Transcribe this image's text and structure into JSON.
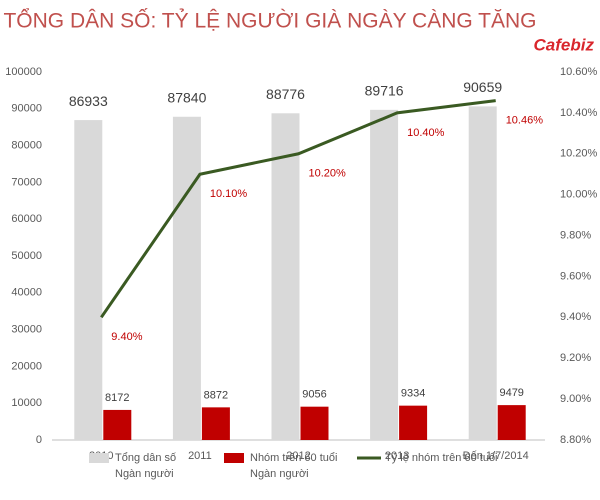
{
  "chart_data": {
    "type": "bar-line",
    "title": "TỔNG DÂN SỐ: TỶ LỆ NGƯỜI GIÀ NGÀY CÀNG TĂNG",
    "logo": "Cafebiz",
    "categories": [
      "2010",
      "2011",
      "2012",
      "2013",
      "Đến 1/7/2014"
    ],
    "series": [
      {
        "name": "Tổng dân số",
        "unit": "Ngàn người",
        "type": "bar",
        "color": "#d9d9d9",
        "values": [
          86933,
          87840,
          88776,
          89716,
          90659
        ]
      },
      {
        "name": "Nhóm trên 60 tuổi",
        "unit": "Ngàn người",
        "type": "bar",
        "color": "#c00000",
        "values": [
          8172,
          8872,
          9056,
          9334,
          9479
        ]
      },
      {
        "name": "Tỷ lệ nhóm trên 60 tuổi",
        "type": "line",
        "axis": "y2",
        "color": "#3a5a22",
        "values": [
          9.4,
          10.1,
          10.2,
          10.4,
          10.46
        ],
        "value_labels": [
          "9.40%",
          "10.10%",
          "10.20%",
          "10.40%",
          "10.46%"
        ]
      }
    ],
    "ylim": [
      0,
      100000
    ],
    "yticks": [
      0,
      10000,
      20000,
      30000,
      40000,
      50000,
      60000,
      70000,
      80000,
      90000,
      100000
    ],
    "y2lim": [
      8.8,
      10.6
    ],
    "y2ticks": [
      {
        "value": 8.8,
        "label": "8.80%"
      },
      {
        "value": 9.0,
        "label": "9.00%"
      },
      {
        "value": 9.2,
        "label": "9.20%"
      },
      {
        "value": 9.4,
        "label": "9.40%"
      },
      {
        "value": 9.6,
        "label": "9.60%"
      },
      {
        "value": 9.8,
        "label": "9.80%"
      },
      {
        "value": 10.0,
        "label": "10.00%"
      },
      {
        "value": 10.2,
        "label": "10.20%"
      },
      {
        "value": 10.4,
        "label": "10.40%"
      },
      {
        "value": 10.6,
        "label": "10.60%"
      }
    ],
    "grid": false,
    "legend": "bottom"
  }
}
